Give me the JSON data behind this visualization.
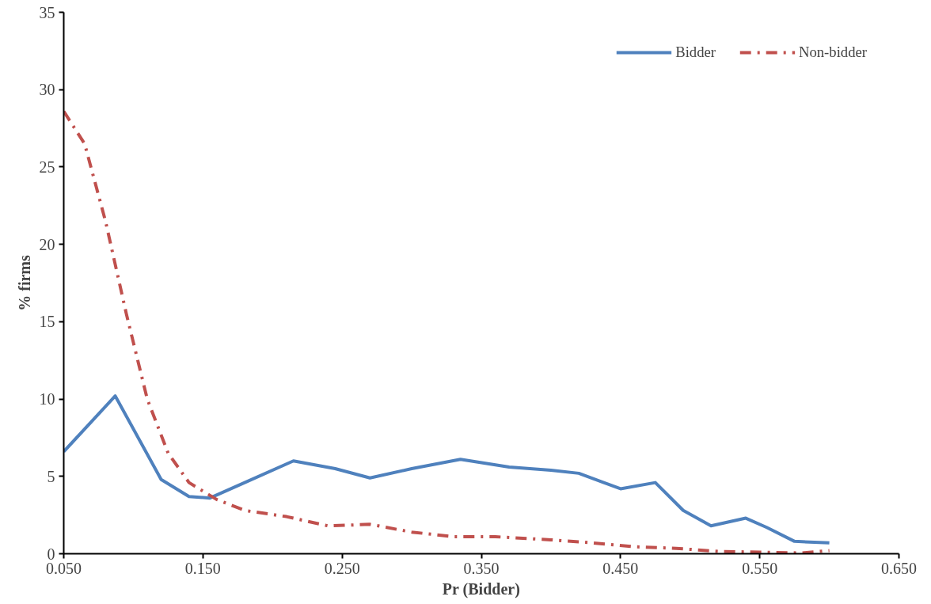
{
  "chart_data": {
    "type": "line",
    "xlabel": "Pr (Bidder)",
    "ylabel": "% firms",
    "xlim": [
      0.05,
      0.65
    ],
    "xticks": [
      {
        "value": 0.05,
        "label": "0.050"
      },
      {
        "value": 0.15,
        "label": "0.150"
      },
      {
        "value": 0.25,
        "label": "0.250"
      },
      {
        "value": 0.35,
        "label": "0.350"
      },
      {
        "value": 0.45,
        "label": "0.450"
      },
      {
        "value": 0.55,
        "label": "0.550"
      },
      {
        "value": 0.65,
        "label": "0.650"
      }
    ],
    "ylim": [
      0,
      35
    ],
    "yticks": [
      0,
      5,
      10,
      15,
      20,
      25,
      30,
      35
    ],
    "grid": false,
    "legend": "top right",
    "marker": "none",
    "series": [
      {
        "name": "Bidder",
        "color": "#4f81bd",
        "line_style": "solid",
        "x": [
          0.05,
          0.087,
          0.12,
          0.14,
          0.155,
          0.18,
          0.215,
          0.245,
          0.27,
          0.3,
          0.335,
          0.37,
          0.4,
          0.42,
          0.45,
          0.475,
          0.495,
          0.515,
          0.54,
          0.555,
          0.575,
          0.6
        ],
        "values": [
          6.6,
          10.2,
          4.8,
          3.7,
          3.6,
          4.6,
          6.0,
          5.5,
          4.9,
          5.5,
          6.1,
          5.6,
          5.4,
          5.2,
          4.2,
          4.6,
          2.8,
          1.8,
          2.3,
          1.7,
          0.8,
          0.7
        ]
      },
      {
        "name": "Non-bidder",
        "color": "#c0504d",
        "line_style": "dashed",
        "x": [
          0.05,
          0.065,
          0.08,
          0.095,
          0.11,
          0.125,
          0.14,
          0.16,
          0.18,
          0.21,
          0.24,
          0.27,
          0.3,
          0.33,
          0.36,
          0.4,
          0.43,
          0.46,
          0.49,
          0.52,
          0.55,
          0.58,
          0.6
        ],
        "values": [
          28.6,
          26.5,
          21.5,
          15.5,
          10.0,
          6.5,
          4.6,
          3.5,
          2.8,
          2.4,
          1.8,
          1.9,
          1.4,
          1.1,
          1.1,
          0.9,
          0.7,
          0.45,
          0.35,
          0.15,
          0.1,
          0.05,
          0.2
        ]
      }
    ]
  }
}
